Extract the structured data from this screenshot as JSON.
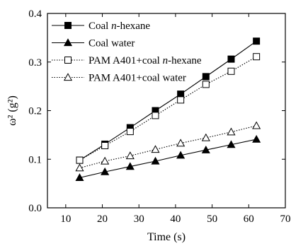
{
  "chart_data": {
    "type": "line",
    "xlabel": "Time (s)",
    "ylabel": "ω² (g²)",
    "xlim": [
      5,
      70
    ],
    "ylim": [
      0.0,
      0.4
    ],
    "xticks": [
      10,
      20,
      30,
      40,
      50,
      60,
      70
    ],
    "yticks": [
      0.0,
      0.1,
      0.2,
      0.3,
      0.4
    ],
    "ytick_labels": [
      "0.0",
      "0.1",
      "0.2",
      "0.3",
      "0.4"
    ],
    "legend_position": "top-left",
    "x": [
      13.8,
      20.7,
      27.6,
      34.5,
      41.4,
      48.3,
      55.2,
      62.1
    ],
    "series": [
      {
        "name": "Coal n-hexane",
        "label_parts": [
          "Coal ",
          "n",
          "-hexane"
        ],
        "marker": "filled-square",
        "line": "solid",
        "values": [
          0.098,
          0.131,
          0.165,
          0.2,
          0.234,
          0.27,
          0.306,
          0.343
        ]
      },
      {
        "name": "Coal water",
        "label_parts": [
          "Coal water",
          "",
          ""
        ],
        "marker": "filled-triangle",
        "line": "solid",
        "values": [
          0.062,
          0.074,
          0.085,
          0.096,
          0.108,
          0.119,
          0.13,
          0.141
        ]
      },
      {
        "name": "PAM A401+coal n-hexane",
        "label_parts": [
          "PAM A401+coal ",
          "n",
          "-hexane"
        ],
        "marker": "open-square",
        "line": "dotted",
        "values": [
          0.098,
          0.128,
          0.157,
          0.19,
          0.222,
          0.254,
          0.281,
          0.311
        ]
      },
      {
        "name": "PAM A401+coal water",
        "label_parts": [
          "PAM A401+coal water",
          "",
          ""
        ],
        "marker": "open-triangle",
        "line": "dotted",
        "values": [
          0.082,
          0.096,
          0.107,
          0.12,
          0.133,
          0.144,
          0.156,
          0.169
        ]
      }
    ]
  }
}
